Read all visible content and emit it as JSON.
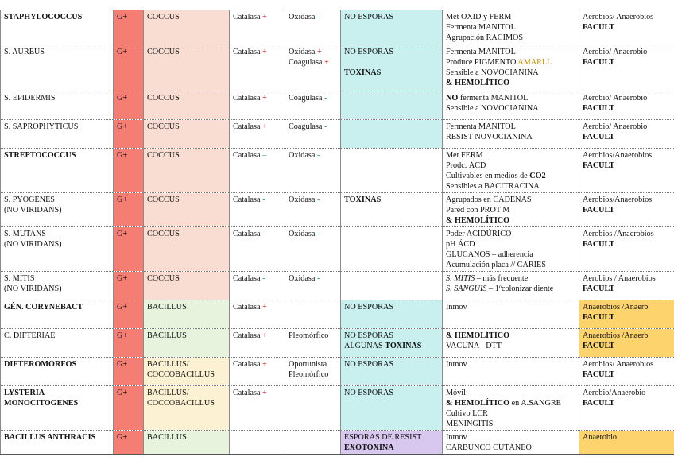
{
  "rows": [
    {
      "name": "STAPHYLOCOCCUS",
      "gram": "G+",
      "morph": "COCCUS",
      "catalasa": "Catalasa",
      "catalasa_sign": "+",
      "oxi_label": "Oxidasa",
      "oxi_sign": "-",
      "esp1": "NO ESPORAS",
      "car1": "Met OXID y FERM",
      "car2": "Fermenta MANITOL",
      "car3": "Agrupación RACIMOS",
      "aer1": "Aerobios/ Anaerobios",
      "aer2": "FACULT"
    },
    {
      "name": "S. AUREUS",
      "gram": "G+",
      "morph": "COCCUS",
      "catalasa": "Catalasa",
      "catalasa_sign": "+",
      "oxi_label": "Oxidasa",
      "oxi_sign": "+",
      "oxi2_label": "Coagulasa",
      "oxi2_sign": "+",
      "esp1": "NO ESPORAS",
      "esp3": "TOXINAS",
      "car1": "Fermenta MANITOL",
      "car2_pre": "Produce PIGMENTO",
      "car2_gold": "AMARLL",
      "car3": "Sensible a NOVOCIANINA",
      "car4": "& HEMOLÍTICO",
      "aer1": "Aerobio/ Anaerobio",
      "aer2": "FACULT"
    },
    {
      "name": "S. EPIDERMIS",
      "gram": "G+",
      "morph": "COCCUS",
      "catalasa": "Catalasa",
      "catalasa_sign": "+",
      "oxi_label": "Coagulasa",
      "oxi_sign": "-",
      "car1_b": "NO",
      "car1": "fermenta MANITOL",
      "car2": "Sensible a NOVOCIANINA",
      "aer1": "Aerobio/ Anaerobio",
      "aer2": "FACULT"
    },
    {
      "name": "S. SAPROPHYTICUS",
      "gram": "G+",
      "morph": "COCCUS",
      "catalasa": "Catalasa",
      "catalasa_sign": "+",
      "oxi_label": "Coagulasa",
      "oxi_sign": "-",
      "car1": "Fermenta MANITOL",
      "car2": "RESIST NOVOCIANINA",
      "aer1": "Aerobio/ Anaerobio",
      "aer2": "FACULT"
    },
    {
      "name": "STREPTOCOCCUS",
      "gram": "G+",
      "morph": "COCCUS",
      "catalasa": "Catalasa",
      "catalasa_sign": "–",
      "oxi_label": "Oxidasa",
      "oxi_sign": "-",
      "car1": "Met FERM",
      "car2": "Prodc. ÁCD",
      "car3_pre": "Cultivables en medios de",
      "car3_b": "CO2",
      "car4": "Sensibles a BACITRACINA",
      "aer1": "Aerobios/Anaerobios",
      "aer2": "FACULT"
    },
    {
      "name": "S. PYOGENES",
      "name2": "(NO VIRIDANS)",
      "gram": "G+",
      "morph": "COCCUS",
      "catalasa": "Catalasa",
      "catalasa_sign": "-",
      "oxi_label": "Oxidasa",
      "oxi_sign": "-",
      "esp1": "TOXINAS",
      "car1": "Agrupados en CADENAS",
      "car2": "Pared con PROT M",
      "car3": "& HEMOLÍTICO",
      "aer1": "Aerobios/Anaerobios",
      "aer2": "FACULT"
    },
    {
      "name": "S. MUTANS",
      "name2": "(NO VIRIDANS)",
      "gram": "G+",
      "morph": "COCCUS",
      "catalasa": "Catalasa",
      "catalasa_sign": "-",
      "oxi_label": "Oxidasa",
      "oxi_sign": "-",
      "car1": "Poder ACIDÚRICO",
      "car2": "pH ÁCD",
      "car3_pre": "GLUCANOS",
      "car3_post": "– adherencia",
      "car4": "Acumulación placa // CARIES",
      "aer1": "Aerobios /Anaerobios",
      "aer2": "FACULT"
    },
    {
      "name": "S. MITIS",
      "name2": "(NO VIRIDANS)",
      "gram": "G+",
      "morph": "COCCUS",
      "catalasa": "Catalasa",
      "catalasa_sign": "-",
      "oxi_label": "Oxidasa",
      "oxi_sign": "-",
      "car1_i": "S. MITIS",
      "car1": "– más frecuente",
      "car2_i": "S. SANGUIS",
      "car2": "– 1ºcolonizar diente",
      "aer1": "Aerobios / Anaerobios",
      "aer2": "FACULT"
    },
    {
      "name": "GÉN. CORYNEBACT",
      "gram": "G+",
      "morph": "BACILLUS",
      "catalasa": "Catalasa",
      "catalasa_sign": "+",
      "esp1": "NO ESPORAS",
      "car1": "Inmov",
      "aer1": "Anaerobios /Anaerb",
      "aer2": "FACULT"
    },
    {
      "name": "C. DIFTERIAE",
      "gram": "G+",
      "morph": "BACILLUS",
      "catalasa": "Catalasa",
      "catalasa_sign": "+",
      "oxi_label": "Pleomórfico",
      "esp1": "NO ESPORAS",
      "esp2_pre": "ALGUNAS",
      "esp2_b": "TOXINAS",
      "car1": "& HEMOLÍTICO",
      "car2": "VACUNA - DTT",
      "aer1": "Anaerobios /Anaerb",
      "aer2": "FACULT"
    },
    {
      "name": "DIFTEROMORFOS",
      "gram": "G+",
      "morph": "BACILLUS/",
      "morph2": "COCCOBACILLUS",
      "catalasa": "Catalasa",
      "catalasa_sign": "+",
      "oxi_label": "Oportunista",
      "oxi2_label": "Pleomórfico",
      "esp1": "NO ESPORAS",
      "car1": "Inmov",
      "aer1": "Aerobios/ Anaerobios",
      "aer2": "FACULT"
    },
    {
      "name": "LYSTERIA",
      "name2": "MONOCITOGENES",
      "gram": "G+",
      "morph": "BACILLUS/",
      "morph2": "COCCOBACILLUS",
      "catalasa": "Catalasa",
      "catalasa_sign": "+",
      "esp1": "NO ESPORAS",
      "car1": "Móvil",
      "car2_b": "& HEMOLÍTICO",
      "car2": "en A.SANGRE",
      "car3": "Cultivo LCR",
      "car4": "MENINGITIS",
      "aer1": "Aerobio/Anaerobio",
      "aer2": "FACULT"
    },
    {
      "name": "BACILLUS ANTHRACIS",
      "gram": "G+",
      "morph": "BACILLUS",
      "esp1": "ESPORAS DE RESIST",
      "esp2_b": "EXOTOXINA",
      "car1": "Inmov",
      "car2": "CARBUNCO CUTÁNEO",
      "aer1": "Anaerobio"
    }
  ]
}
